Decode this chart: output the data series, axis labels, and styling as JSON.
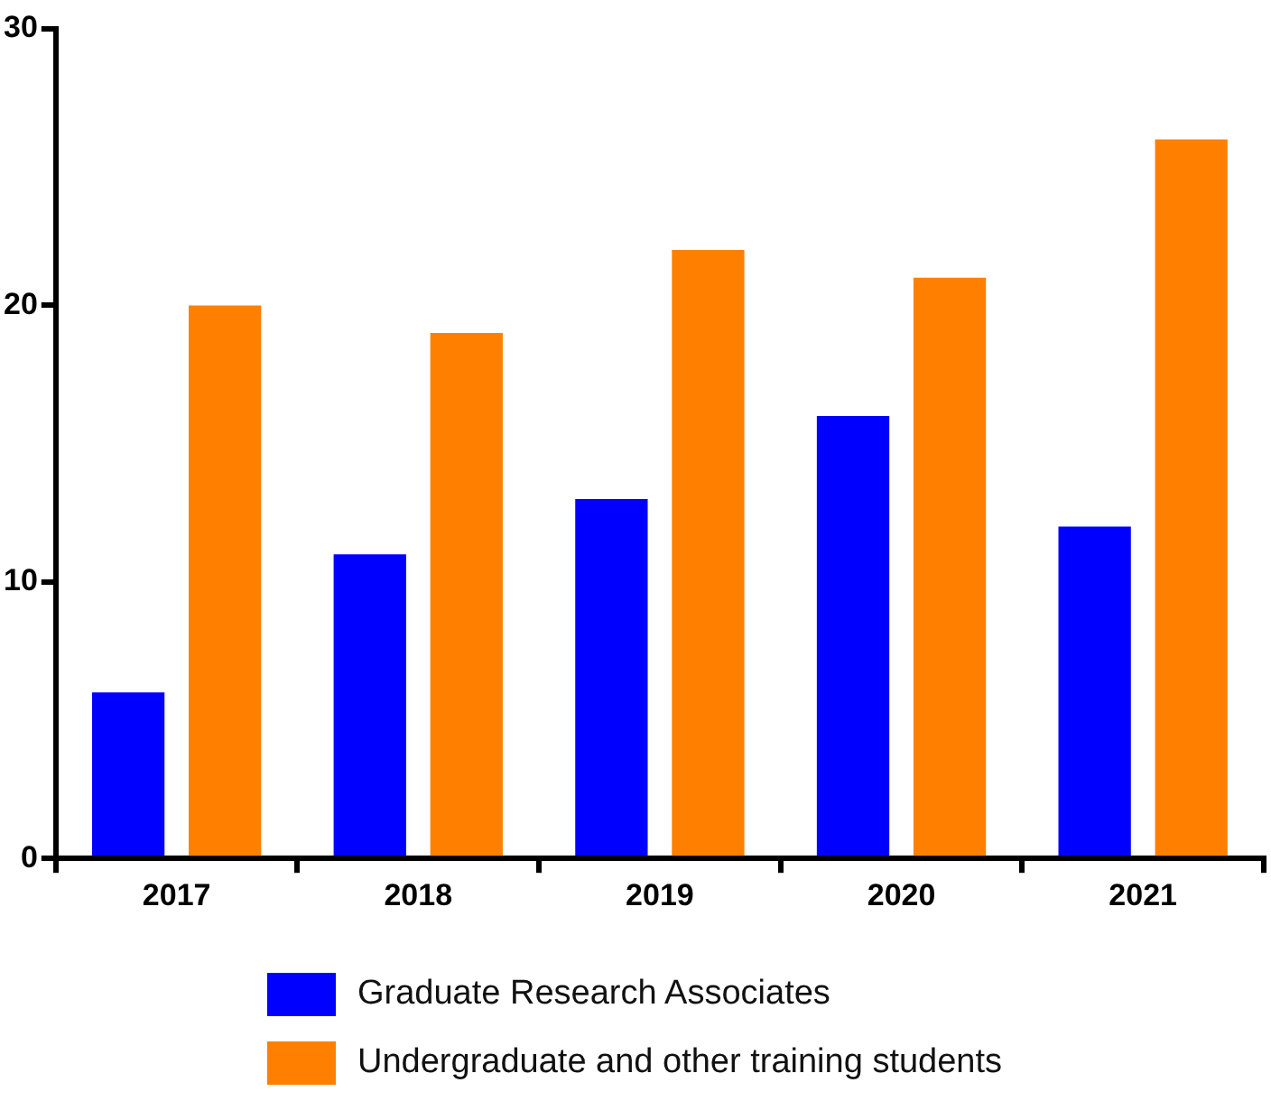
{
  "chart_data": {
    "type": "bar",
    "categories": [
      "2017",
      "2018",
      "2019",
      "2020",
      "2021"
    ],
    "series": [
      {
        "name": "Graduate Research Associates",
        "color": "#0000ff",
        "values": [
          6,
          11,
          13,
          16,
          12
        ]
      },
      {
        "name": "Undergraduate and other training students",
        "color": "#ff8000",
        "values": [
          20,
          19,
          22,
          21,
          26
        ]
      }
    ],
    "ylim": [
      0,
      30
    ],
    "yticks": [
      0,
      10,
      20,
      30
    ],
    "grid": false,
    "legend": "bottom"
  }
}
